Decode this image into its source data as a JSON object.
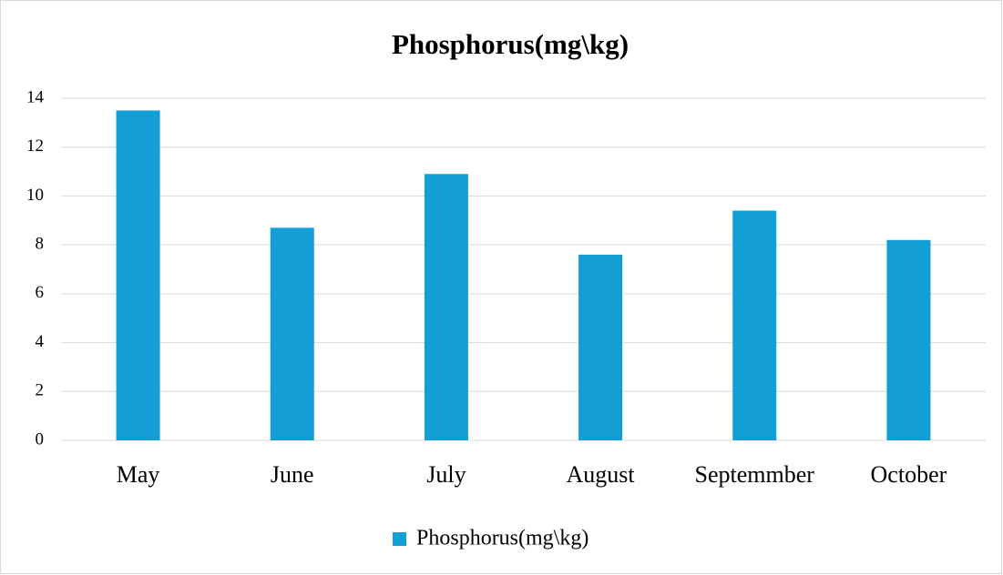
{
  "chart_data": {
    "type": "bar",
    "title": "Phosphorus(mg\\kg)",
    "categories": [
      "May",
      "June",
      "July",
      "August",
      "Septemmber",
      "October"
    ],
    "series": [
      {
        "name": "Phosphorus(mg\\kg)",
        "color": "#139fd6",
        "values": [
          13.5,
          8.7,
          10.9,
          7.6,
          9.4,
          8.2
        ]
      }
    ],
    "ylim": [
      0,
      14
    ],
    "yticks": [
      0,
      2,
      4,
      6,
      8,
      10,
      12,
      14
    ],
    "grid": true,
    "legend": "bottom"
  }
}
